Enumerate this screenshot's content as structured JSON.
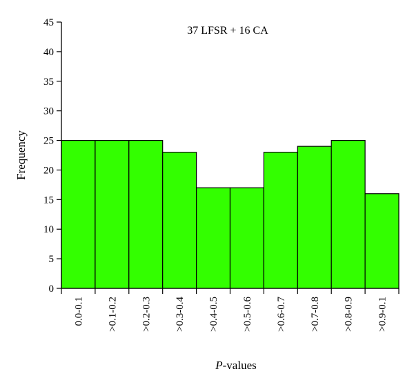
{
  "chart_data": {
    "type": "bar",
    "title": "37 LFSR + 16 CA",
    "xlabel_italic": "P",
    "xlabel_rest": "-values",
    "ylabel": "Frequency",
    "categories": [
      "0.0-0.1",
      ">0.1-0.2",
      ">0.2-0.3",
      ">0.3-0.4",
      ">0.4-0.5",
      ">0.5-0.6",
      ">0.6-0.7",
      ">0.7-0.8",
      ">0.8-0.9",
      ">0.9-0.1"
    ],
    "values": [
      25,
      25,
      25,
      23,
      17,
      17,
      23,
      24,
      25,
      16
    ],
    "ylim": [
      0,
      45
    ],
    "yticks": [
      0,
      5,
      10,
      15,
      20,
      25,
      30,
      35,
      40,
      45
    ],
    "bar_color": "#33ff00",
    "grid": false,
    "legend": "none"
  }
}
